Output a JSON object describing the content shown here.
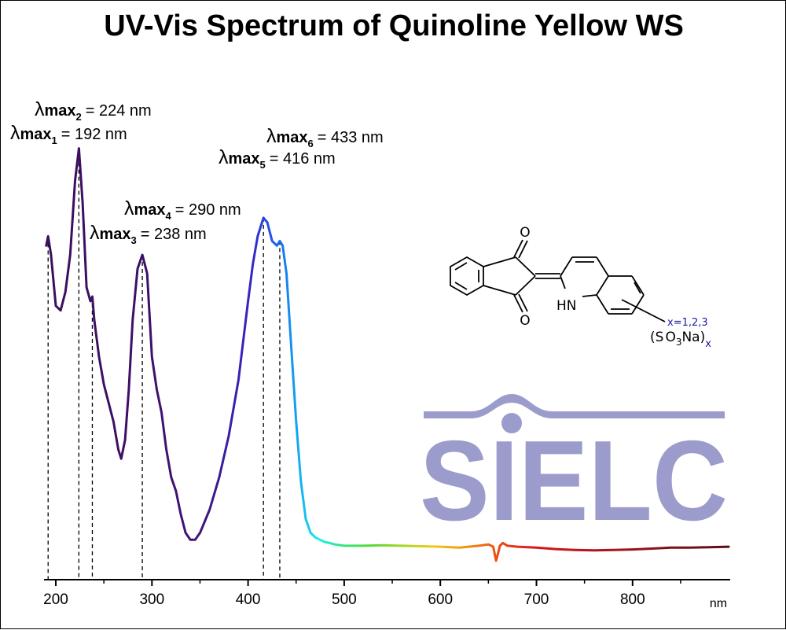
{
  "chart_data": {
    "type": "line",
    "title": "UV-Vis Spectrum of Quinoline Yellow WS",
    "xlabel": "nm",
    "ylabel": "",
    "xlim": [
      190,
      1000
    ],
    "ylim": [
      0,
      1
    ],
    "x_ticks": [
      200,
      300,
      400,
      500,
      600,
      700,
      800
    ],
    "grid": false,
    "legend": "none",
    "color_scale": "wavelength-colored line (purple to blue to cyan, green, yellow, orange, red, dark red)",
    "series": [
      {
        "x": [
          190,
          192,
          195,
          200,
          205,
          210,
          215,
          220,
          224,
          228,
          232,
          236,
          238,
          240,
          245,
          250,
          255,
          260,
          265,
          268,
          272,
          276,
          280,
          285,
          290,
          295,
          300,
          305,
          310,
          315,
          320,
          325,
          330,
          335,
          340,
          345,
          350,
          360,
          370,
          380,
          390,
          400,
          405,
          410,
          416,
          420,
          425,
          430,
          433,
          436,
          440,
          445,
          450,
          455,
          460,
          465,
          470,
          475,
          480,
          485,
          490,
          500,
          520,
          540,
          560,
          580,
          600,
          620,
          640,
          650,
          655,
          658,
          660,
          662,
          665,
          670,
          680,
          700,
          720,
          740,
          760,
          780,
          800,
          820,
          840,
          860,
          880,
          900
        ],
        "y": [
          0.66,
          0.68,
          0.64,
          0.53,
          0.52,
          0.56,
          0.64,
          0.8,
          0.87,
          0.75,
          0.57,
          0.54,
          0.55,
          0.5,
          0.42,
          0.36,
          0.32,
          0.28,
          0.22,
          0.2,
          0.24,
          0.35,
          0.5,
          0.61,
          0.64,
          0.6,
          0.42,
          0.35,
          0.3,
          0.22,
          0.16,
          0.13,
          0.08,
          0.04,
          0.025,
          0.025,
          0.04,
          0.09,
          0.16,
          0.25,
          0.37,
          0.54,
          0.62,
          0.68,
          0.72,
          0.71,
          0.67,
          0.66,
          0.67,
          0.66,
          0.6,
          0.44,
          0.28,
          0.15,
          0.07,
          0.04,
          0.03,
          0.025,
          0.02,
          0.018,
          0.015,
          0.012,
          0.012,
          0.013,
          0.012,
          0.011,
          0.01,
          0.008,
          0.012,
          0.015,
          0.01,
          -0.02,
          -0.005,
          0.012,
          0.018,
          0.012,
          0.01,
          0.008,
          0.005,
          0.003,
          0.002,
          0.003,
          0.004,
          0.006,
          0.008,
          0.008,
          0.009,
          0.01
        ]
      }
    ],
    "annotations": [
      {
        "prefix": "λ",
        "label": "max",
        "index": "1",
        "value": "= 192 nm",
        "x": 192
      },
      {
        "prefix": "λ",
        "label": "max",
        "index": "2",
        "value": "= 224 nm",
        "x": 224
      },
      {
        "prefix": "λ",
        "label": "max",
        "index": "3",
        "value": "= 238 nm",
        "x": 238
      },
      {
        "prefix": "λ",
        "label": "max",
        "index": "4",
        "value": "= 290 nm",
        "x": 290
      },
      {
        "prefix": "λ",
        "label": "max",
        "index": "5",
        "value": "= 416 nm",
        "x": 416
      },
      {
        "prefix": "λ",
        "label": "max",
        "index": "6",
        "value": "= 433 nm",
        "x": 433
      }
    ]
  },
  "structure": {
    "atoms": {
      "o_top": "O",
      "o_bottom": "O",
      "nh": "HN"
    },
    "substituent_note": "x=1,2,3",
    "substituent": {
      "open": "(",
      "s": "S",
      "o": "O",
      "o_sub": "3",
      "na": "Na",
      "close": ")",
      "x": "x"
    }
  },
  "logo": {
    "text": "SIELC",
    "color": "#9c9ccc"
  }
}
